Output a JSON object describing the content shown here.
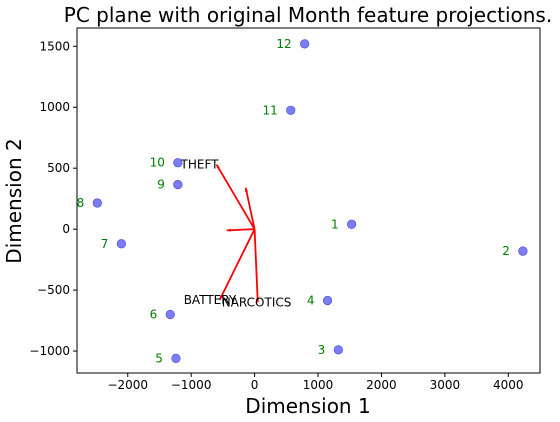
{
  "chart_data": {
    "type": "scatter",
    "title": "PC plane with original Month feature projections.",
    "xlabel": "Dimension 1",
    "ylabel": "Dimension 2",
    "xlim": [
      -2800,
      4500
    ],
    "ylim": [
      -1180,
      1650
    ],
    "xticks": [
      -2000,
      -1000,
      0,
      1000,
      2000,
      3000,
      4000
    ],
    "yticks": [
      -1000,
      -500,
      0,
      500,
      1000,
      1500
    ],
    "xtick_labels": [
      "−2000",
      "−1000",
      "0",
      "1000",
      "2000",
      "3000",
      "4000"
    ],
    "ytick_labels": [
      "−1000",
      "−500",
      "0",
      "500",
      "1000",
      "1500"
    ],
    "point_color": "#6666ee",
    "label_color": "#008000",
    "arrow_color": "#ff0000",
    "points": [
      {
        "label": "1",
        "x": 1530,
        "y": 40
      },
      {
        "label": "2",
        "x": 4230,
        "y": -180
      },
      {
        "label": "3",
        "x": 1320,
        "y": -990
      },
      {
        "label": "4",
        "x": 1150,
        "y": -585
      },
      {
        "label": "5",
        "x": -1240,
        "y": -1060
      },
      {
        "label": "6",
        "x": -1330,
        "y": -700
      },
      {
        "label": "7",
        "x": -2100,
        "y": -120
      },
      {
        "label": "8",
        "x": -2480,
        "y": 215
      },
      {
        "label": "9",
        "x": -1210,
        "y": 365
      },
      {
        "label": "10",
        "x": -1210,
        "y": 545
      },
      {
        "label": "11",
        "x": 570,
        "y": 975
      },
      {
        "label": "12",
        "x": 790,
        "y": 1520
      }
    ],
    "features": [
      {
        "name": "THEFT",
        "x": -600,
        "y": 530
      },
      {
        "name": "BATTERY",
        "x": -550,
        "y": -580
      },
      {
        "name": "NARCOTICS",
        "x": 50,
        "y": -600
      }
    ],
    "extra_arrows": [
      {
        "x": -140,
        "y": 340
      },
      {
        "x": -440,
        "y": -10
      }
    ]
  }
}
